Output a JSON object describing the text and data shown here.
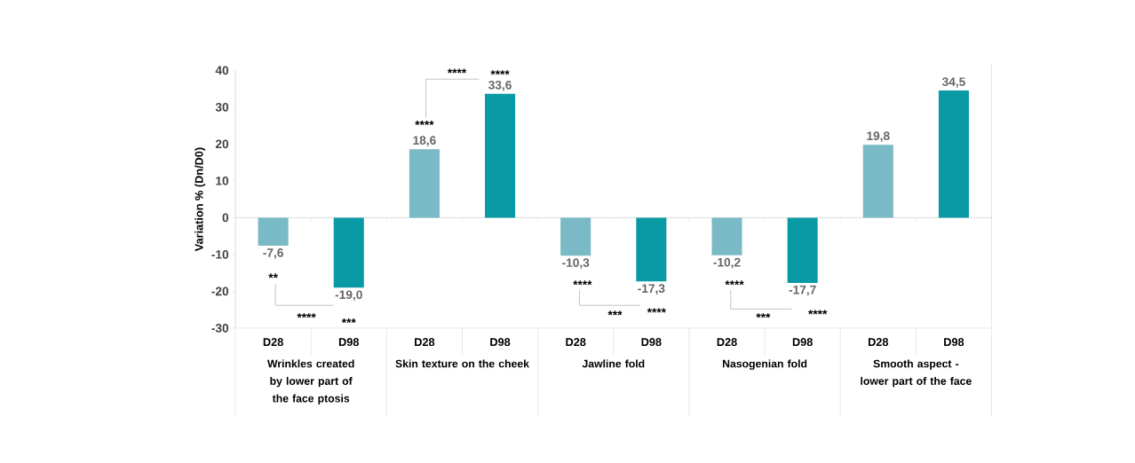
{
  "chart_data": {
    "type": "bar",
    "ylabel": "Variation % (Dn/D0)",
    "categories": [
      "D28",
      "D98",
      "D28",
      "D98",
      "D28",
      "D98",
      "D28",
      "D98",
      "D28",
      "D98"
    ],
    "values": [
      -7.6,
      -19.0,
      18.6,
      33.6,
      -10.3,
      -17.3,
      -10.2,
      -17.7,
      19.8,
      34.5
    ],
    "colors": [
      "#7ab9c6",
      "#0a9aa6",
      "#7ab9c6",
      "#0a9aa6",
      "#7ab9c6",
      "#0a9aa6",
      "#7ab9c6",
      "#0a9aa6",
      "#7ab9c6",
      "#0a9aa6"
    ],
    "value_labels": [
      "-7,6",
      "-19,0",
      "18,6",
      "33,6",
      "-10,3",
      "-17,3",
      "-10,2",
      "-17,7",
      "19,8",
      "34,5"
    ],
    "ylim": [
      -30,
      40
    ],
    "yticks": [
      -30,
      -20,
      -10,
      0,
      10,
      20,
      30,
      40
    ],
    "annotations": [
      "Wrinkles created by lower part of the face ptosis",
      "Skin texture on the cheek",
      "Jawline fold",
      "Nasogenian fold",
      "Smooth aspect - lower part of the face",
      "**",
      "****",
      "***",
      "****",
      "****",
      "****",
      "****",
      "***",
      "****",
      "****",
      "***",
      "****"
    ]
  }
}
